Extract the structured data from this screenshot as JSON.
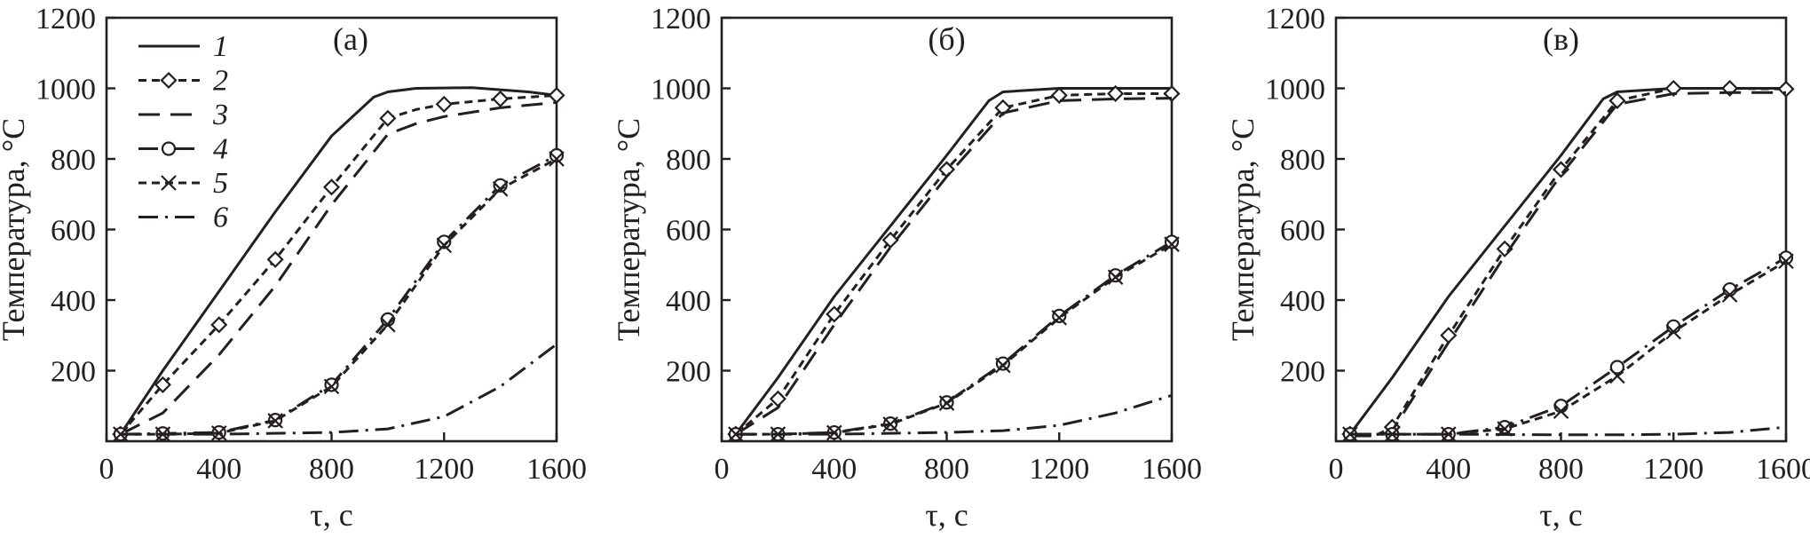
{
  "chart_data": [
    {
      "type": "line",
      "panel_label": "(а)",
      "xlabel": "τ, с",
      "ylabel": "Температура, °C",
      "xlim": [
        0,
        1600
      ],
      "ylim": [
        0,
        1200
      ],
      "xticks": [
        0,
        400,
        800,
        1200,
        1600
      ],
      "yticks": [
        200,
        400,
        600,
        800,
        1000,
        1200
      ],
      "grid": false,
      "legend_position": "top-left",
      "series": [
        {
          "name": "1",
          "style": "solid",
          "marker": "none",
          "x": [
            50,
            200,
            400,
            600,
            800,
            950,
            1000,
            1100,
            1300,
            1500,
            1600
          ],
          "y": [
            20,
            200,
            425,
            650,
            865,
            975,
            990,
            1000,
            1002,
            990,
            980
          ]
        },
        {
          "name": "2",
          "style": "short-dash",
          "marker": "diamond",
          "x": [
            50,
            200,
            400,
            600,
            800,
            1000,
            1100,
            1200,
            1400,
            1600
          ],
          "y": [
            20,
            160,
            330,
            515,
            720,
            915,
            940,
            955,
            970,
            980
          ]
        },
        {
          "name": "3",
          "style": "long-dash",
          "marker": "none",
          "x": [
            50,
            200,
            400,
            600,
            800,
            1000,
            1100,
            1200,
            1400,
            1600
          ],
          "y": [
            20,
            80,
            245,
            440,
            670,
            870,
            900,
            920,
            945,
            960
          ]
        },
        {
          "name": "4",
          "style": "dash-dot",
          "marker": "circle",
          "x": [
            50,
            200,
            400,
            600,
            800,
            1000,
            1200,
            1400,
            1600
          ],
          "y": [
            20,
            22,
            25,
            60,
            160,
            345,
            565,
            725,
            810
          ]
        },
        {
          "name": "5",
          "style": "short-dash",
          "marker": "cross",
          "x": [
            50,
            200,
            400,
            600,
            800,
            1000,
            1200,
            1400,
            1600
          ],
          "y": [
            20,
            20,
            23,
            58,
            155,
            330,
            555,
            715,
            800
          ]
        },
        {
          "name": "6",
          "style": "dash-dot",
          "marker": "none",
          "x": [
            50,
            400,
            800,
            1000,
            1200,
            1400,
            1600
          ],
          "y": [
            20,
            20,
            25,
            35,
            70,
            155,
            275
          ]
        }
      ]
    },
    {
      "type": "line",
      "panel_label": "(б)",
      "xlabel": "τ, с",
      "ylabel": "Температура, °C",
      "xlim": [
        0,
        1600
      ],
      "ylim": [
        0,
        1200
      ],
      "xticks": [
        0,
        400,
        800,
        1200,
        1600
      ],
      "yticks": [
        200,
        400,
        600,
        800,
        1000,
        1200
      ],
      "grid": false,
      "series": [
        {
          "name": "1",
          "style": "solid",
          "marker": "none",
          "x": [
            50,
            200,
            400,
            600,
            800,
            950,
            1000,
            1200,
            1400,
            1600
          ],
          "y": [
            20,
            180,
            410,
            610,
            810,
            965,
            990,
            1000,
            1000,
            1000
          ]
        },
        {
          "name": "2",
          "style": "short-dash",
          "marker": "diamond",
          "x": [
            50,
            200,
            400,
            600,
            800,
            1000,
            1200,
            1400,
            1600
          ],
          "y": [
            20,
            120,
            360,
            570,
            770,
            945,
            980,
            985,
            985
          ]
        },
        {
          "name": "3",
          "style": "long-dash",
          "marker": "none",
          "x": [
            50,
            200,
            400,
            600,
            800,
            1000,
            1200,
            1400,
            1600
          ],
          "y": [
            20,
            95,
            330,
            550,
            750,
            930,
            965,
            970,
            972
          ]
        },
        {
          "name": "4",
          "style": "dash-dot",
          "marker": "circle",
          "x": [
            50,
            200,
            400,
            600,
            800,
            1000,
            1200,
            1400,
            1600
          ],
          "y": [
            20,
            20,
            25,
            50,
            110,
            220,
            355,
            470,
            565
          ]
        },
        {
          "name": "5",
          "style": "short-dash",
          "marker": "cross",
          "x": [
            50,
            200,
            400,
            600,
            800,
            1000,
            1200,
            1400,
            1600
          ],
          "y": [
            20,
            20,
            24,
            48,
            108,
            215,
            350,
            465,
            558
          ]
        },
        {
          "name": "6",
          "style": "dash-dot",
          "marker": "none",
          "x": [
            50,
            400,
            800,
            1000,
            1200,
            1400,
            1600
          ],
          "y": [
            20,
            20,
            25,
            30,
            45,
            80,
            130
          ]
        }
      ]
    },
    {
      "type": "line",
      "panel_label": "(в)",
      "xlabel": "τ, с",
      "ylabel": "Температура, °C",
      "xlim": [
        0,
        1600
      ],
      "ylim": [
        0,
        1200
      ],
      "xticks": [
        0,
        400,
        800,
        1200,
        1600
      ],
      "yticks": [
        200,
        400,
        600,
        800,
        1000,
        1200
      ],
      "grid": false,
      "series": [
        {
          "name": "1",
          "style": "solid",
          "marker": "none",
          "x": [
            50,
            200,
            400,
            600,
            800,
            950,
            1000,
            1200,
            1400,
            1600
          ],
          "y": [
            20,
            180,
            410,
            610,
            810,
            970,
            990,
            1000,
            1000,
            1000
          ]
        },
        {
          "name": "2",
          "style": "short-dash",
          "marker": "diamond",
          "x": [
            50,
            150,
            200,
            400,
            600,
            800,
            1000,
            1200,
            1400,
            1600
          ],
          "y": [
            20,
            20,
            40,
            300,
            545,
            770,
            965,
            1000,
            1000,
            998
          ]
        },
        {
          "name": "3",
          "style": "long-dash",
          "marker": "none",
          "x": [
            50,
            150,
            200,
            400,
            600,
            800,
            1000,
            1200,
            1400,
            1600
          ],
          "y": [
            15,
            15,
            30,
            280,
            525,
            755,
            955,
            985,
            988,
            988
          ]
        },
        {
          "name": "4",
          "style": "dash-dot",
          "marker": "circle",
          "x": [
            50,
            200,
            400,
            600,
            800,
            1000,
            1200,
            1400,
            1600
          ],
          "y": [
            20,
            20,
            20,
            40,
            100,
            210,
            325,
            430,
            520
          ]
        },
        {
          "name": "5",
          "style": "short-dash",
          "marker": "cross",
          "x": [
            50,
            200,
            400,
            600,
            800,
            1000,
            1200,
            1400,
            1600
          ],
          "y": [
            20,
            20,
            20,
            35,
            85,
            185,
            310,
            415,
            510
          ]
        },
        {
          "name": "6",
          "style": "dash-dot",
          "marker": "none",
          "x": [
            50,
            400,
            800,
            1000,
            1200,
            1400,
            1600
          ],
          "y": [
            20,
            20,
            18,
            18,
            20,
            25,
            40
          ]
        }
      ]
    }
  ]
}
